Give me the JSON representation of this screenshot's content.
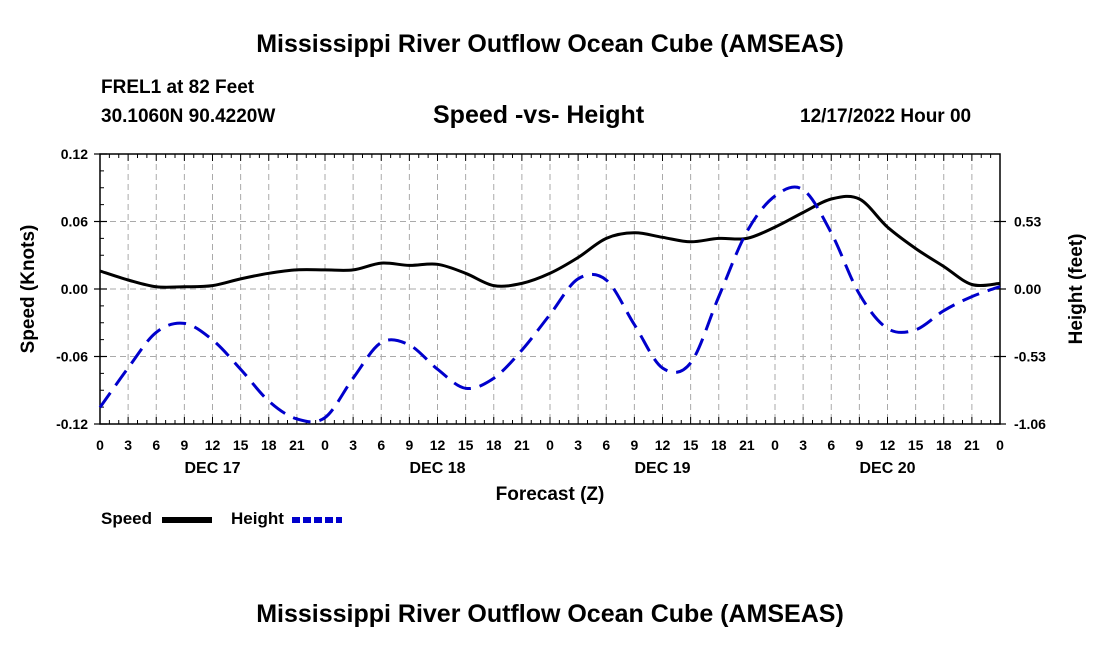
{
  "page": {
    "title": "Mississippi River Outflow Ocean Cube (AMSEAS)",
    "station": "FREL1 at 82 Feet",
    "coordinates": "30.1060N  90.4220W",
    "chart_title": "Speed -vs- Height",
    "datetime": "12/17/2022 Hour 00",
    "bottom_title": "Mississippi River Outflow Ocean Cube (AMSEAS)"
  },
  "legend": {
    "speed": "Speed",
    "height": "Height"
  },
  "colors": {
    "speed": "#000000",
    "height": "#0000cc",
    "grid": "#aaaaaa"
  },
  "chart_data": {
    "type": "line",
    "title": "Speed -vs- Height",
    "xlabel": "Forecast (Z)",
    "ylabel": "Speed (Knots)",
    "y2label": "Height (feet)",
    "x_ticks": [
      "0",
      "3",
      "6",
      "9",
      "12",
      "15",
      "18",
      "21",
      "0",
      "3",
      "6",
      "9",
      "12",
      "15",
      "18",
      "21",
      "0",
      "3",
      "6",
      "9",
      "12",
      "15",
      "18",
      "21",
      "0",
      "3",
      "6",
      "9",
      "12",
      "15",
      "18",
      "21",
      "0"
    ],
    "day_labels": [
      "DEC 17",
      "DEC 18",
      "DEC 19",
      "DEC 20"
    ],
    "ylim": [
      -0.12,
      0.12
    ],
    "y_ticks": [
      "0.12",
      "0.06",
      "0.00",
      "-0.06",
      "-0.12"
    ],
    "y2lim": [
      -1.06,
      1.06
    ],
    "y2_ticks": [
      "0.53",
      "0.00",
      "-0.53",
      "-1.06"
    ],
    "series": [
      {
        "name": "Speed",
        "axis": "left",
        "x": [
          0,
          3,
          6,
          9,
          12,
          15,
          18,
          21,
          24,
          27,
          30,
          33,
          36,
          39,
          42,
          45,
          48,
          51,
          54,
          57,
          60,
          63,
          66,
          69,
          72,
          75,
          78,
          81,
          84,
          87,
          90,
          93,
          96
        ],
        "values": [
          0.016,
          0.008,
          0.002,
          0.002,
          0.003,
          0.009,
          0.014,
          0.017,
          0.017,
          0.017,
          0.023,
          0.021,
          0.022,
          0.014,
          0.003,
          0.005,
          0.014,
          0.028,
          0.045,
          0.05,
          0.046,
          0.042,
          0.045,
          0.045,
          0.055,
          0.068,
          0.08,
          0.08,
          0.055,
          0.036,
          0.02,
          0.004,
          0.005
        ]
      },
      {
        "name": "Height",
        "axis": "right",
        "x": [
          0,
          3,
          6,
          9,
          12,
          15,
          18,
          21,
          24,
          27,
          30,
          33,
          36,
          39,
          42,
          45,
          48,
          51,
          54,
          57,
          60,
          63,
          66,
          69,
          72,
          75,
          78,
          81,
          84,
          87,
          90,
          93,
          96
        ],
        "values": [
          -0.93,
          -0.62,
          -0.34,
          -0.27,
          -0.4,
          -0.63,
          -0.88,
          -1.02,
          -1.01,
          -0.7,
          -0.42,
          -0.44,
          -0.63,
          -0.78,
          -0.7,
          -0.48,
          -0.2,
          0.08,
          0.07,
          -0.28,
          -0.62,
          -0.58,
          -0.06,
          0.45,
          0.73,
          0.78,
          0.44,
          -0.04,
          -0.31,
          -0.32,
          -0.17,
          -0.06,
          0.02
        ]
      }
    ]
  }
}
